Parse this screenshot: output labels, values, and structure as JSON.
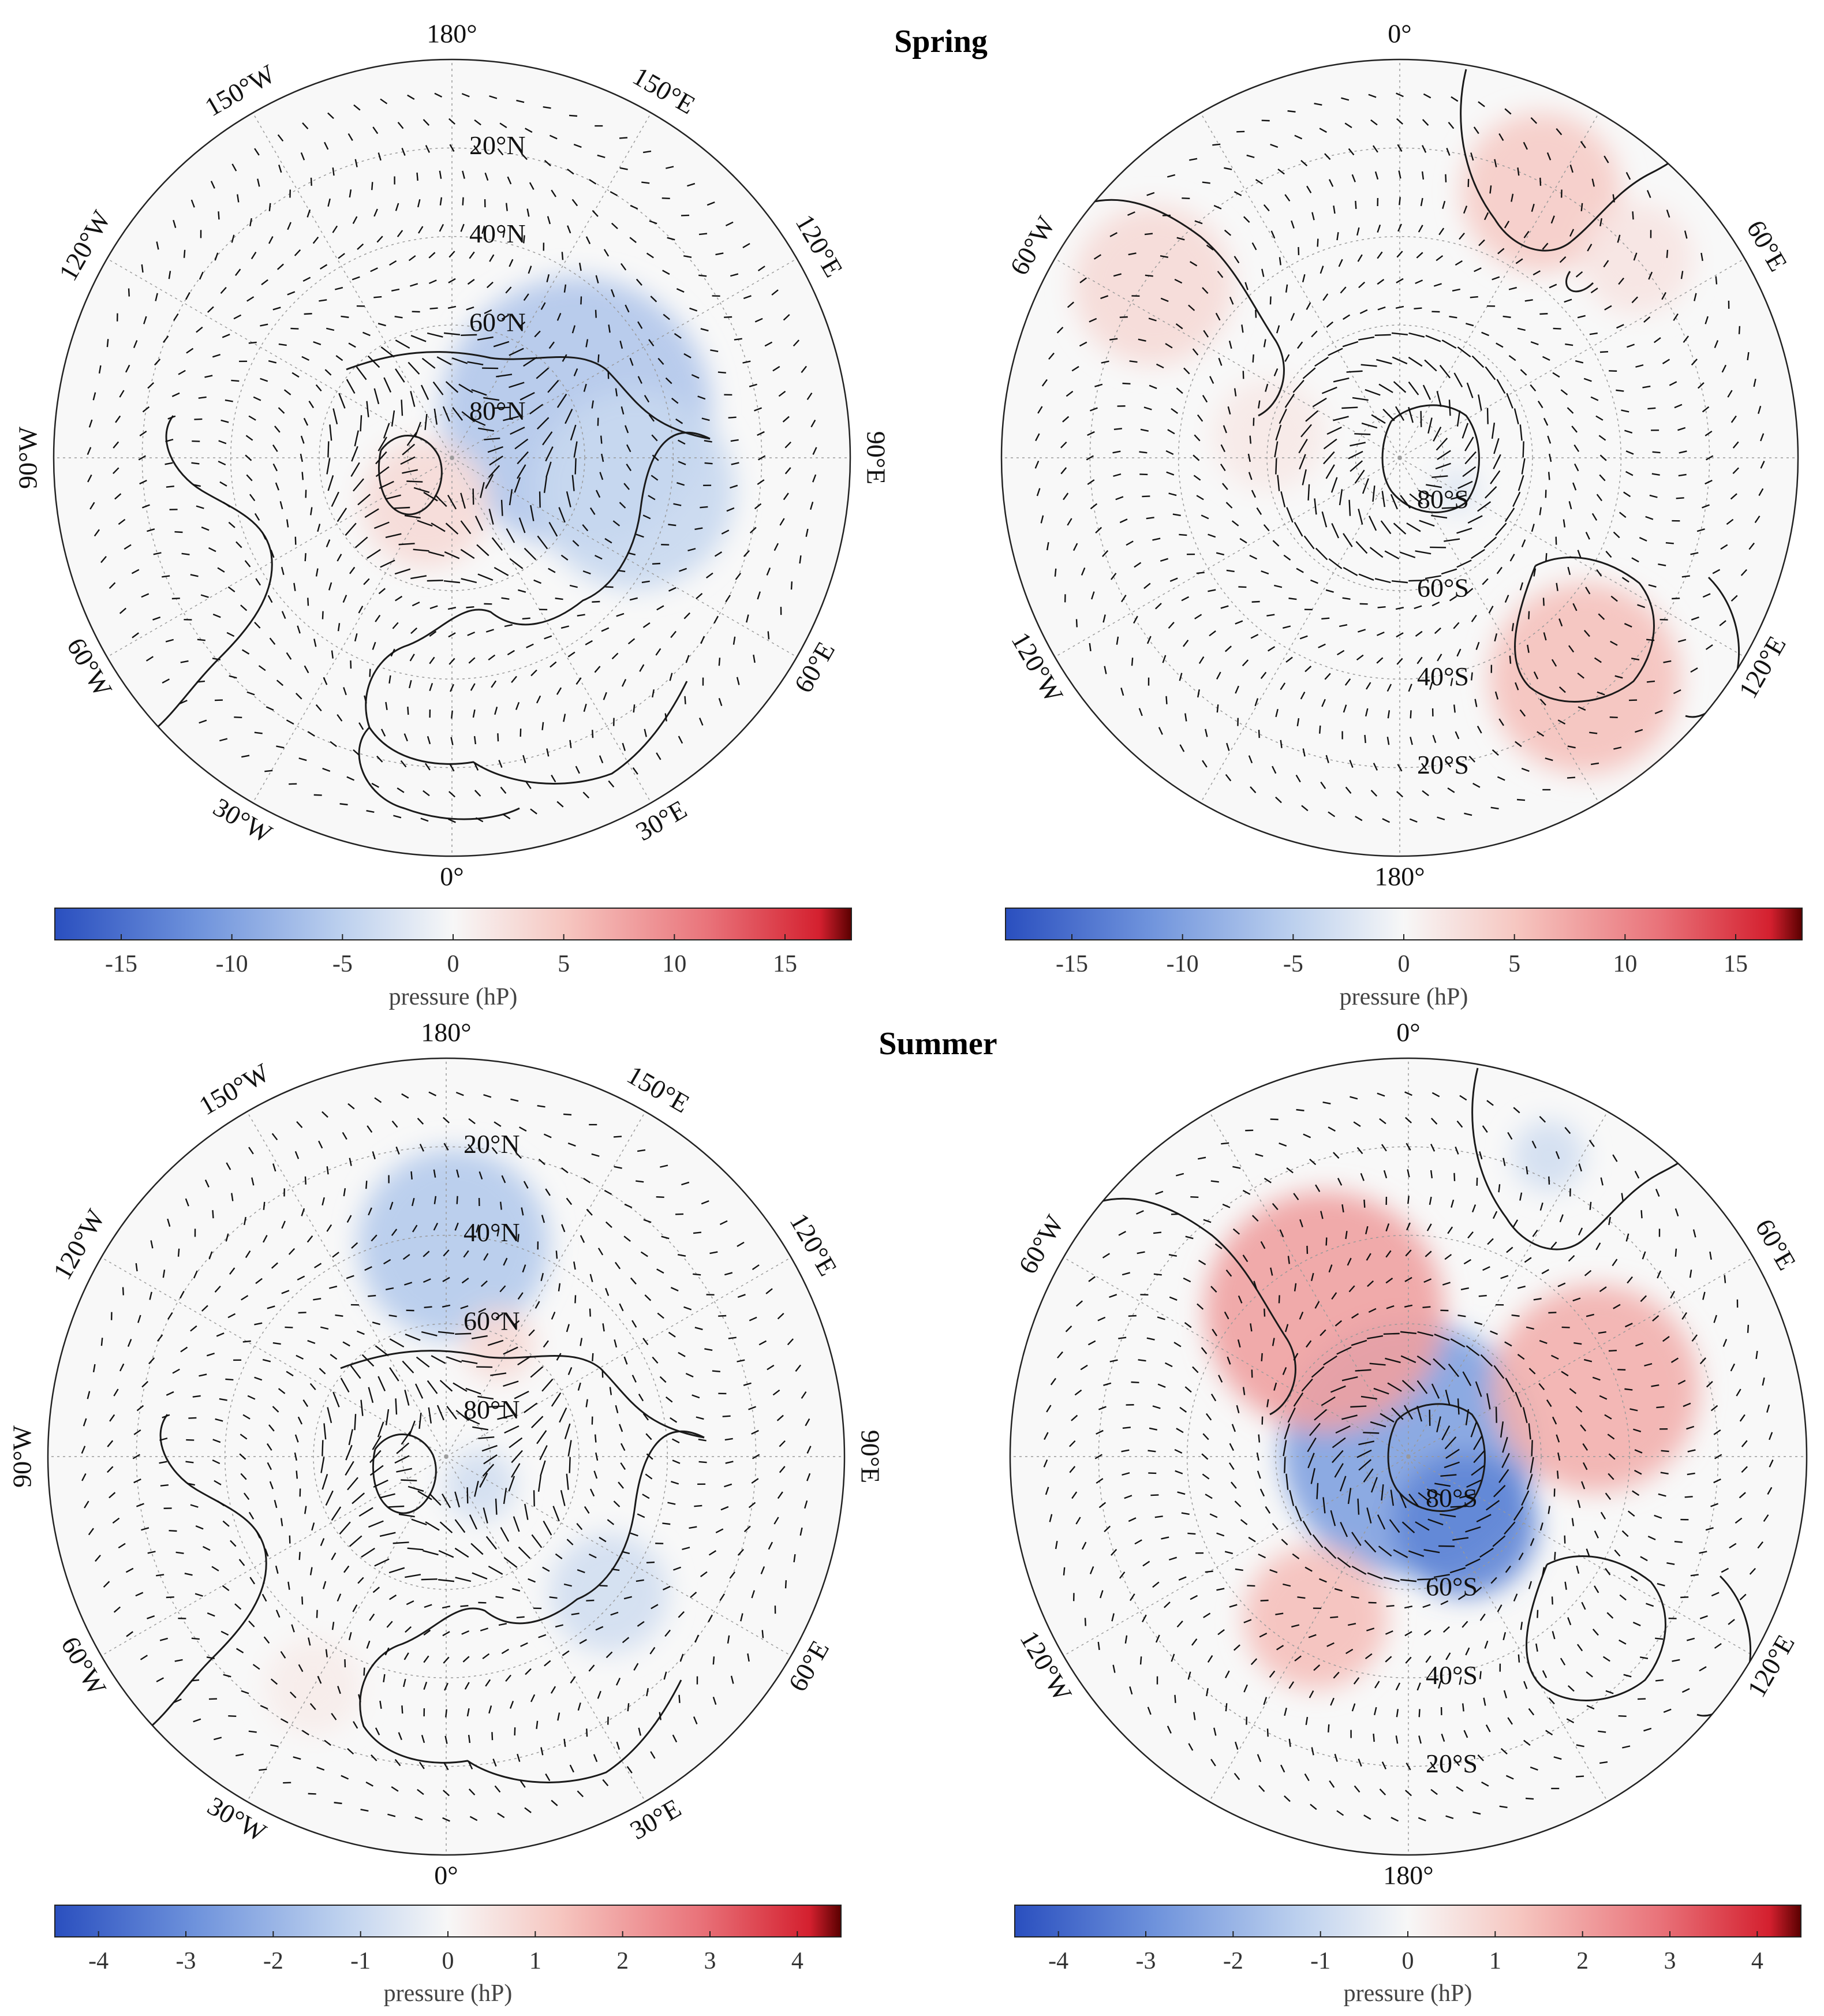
{
  "figure": {
    "row_titles": [
      "Spring",
      "Summer"
    ],
    "panels": [
      {
        "id": "spring-north",
        "season": "Spring",
        "hemisphere": "north",
        "lon_labels": [
          "180°",
          "150°E",
          "120°E",
          "90°E",
          "60°E",
          "30°E",
          "0°",
          "30°W",
          "60°W",
          "90°W",
          "120°W",
          "150°W"
        ],
        "lat_labels": [
          "20°N",
          "40°N",
          "60°N",
          "80°N"
        ],
        "anomalies": [
          {
            "lon": 110,
            "lat": 60,
            "value": -6,
            "spread": 0.34
          },
          {
            "lon": 80,
            "lat": 48,
            "value": -4,
            "spread": 0.25
          },
          {
            "lon": -30,
            "lat": 78,
            "value": 3,
            "spread": 0.16
          }
        ]
      },
      {
        "id": "spring-south",
        "season": "Spring",
        "hemisphere": "south",
        "lon_labels": [
          "0°",
          "60°E",
          "120°E",
          "180°",
          "120°W",
          "60°W"
        ],
        "lat_labels": [
          "20°S",
          "40°S",
          "60°S",
          "80°S"
        ],
        "anomalies": [
          {
            "lon": 28,
            "lat": -22,
            "value": 4.5,
            "spread": 0.2
          },
          {
            "lon": 50,
            "lat": -20,
            "value": 2,
            "spread": 0.14
          },
          {
            "lon": 140,
            "lat": -25,
            "value": 5.5,
            "spread": 0.24
          },
          {
            "lon": -55,
            "lat": -22,
            "value": 3,
            "spread": 0.2
          },
          {
            "lon": -80,
            "lat": -60,
            "value": 1.5,
            "spread": 0.14
          },
          {
            "lon": 120,
            "lat": -75,
            "value": -2,
            "spread": 0.06
          }
        ]
      },
      {
        "id": "summer-north",
        "season": "Summer",
        "hemisphere": "north",
        "lon_labels": [
          "180°",
          "150°E",
          "120°E",
          "90°E",
          "60°E",
          "30°E",
          "0°",
          "30°W",
          "60°W",
          "90°W",
          "120°W",
          "150°W"
        ],
        "lat_labels": [
          "20°N",
          "40°N",
          "60°N",
          "80°N"
        ],
        "anomalies": [
          {
            "lon": 178,
            "lat": 42,
            "value": -1.4,
            "spread": 0.24
          },
          {
            "lon": 155,
            "lat": 62,
            "value": 0.8,
            "spread": 0.09
          },
          {
            "lon": 50,
            "lat": 80,
            "value": -0.8,
            "spread": 0.09
          },
          {
            "lon": 50,
            "lat": 42,
            "value": -0.8,
            "spread": 0.15
          },
          {
            "lon": -30,
            "lat": 30,
            "value": 0.3,
            "spread": 0.12
          }
        ]
      },
      {
        "id": "summer-south",
        "season": "Summer",
        "hemisphere": "south",
        "lon_labels": [
          "0°",
          "60°E",
          "120°E",
          "180°",
          "120°W",
          "60°W"
        ],
        "lat_labels": [
          "20°S",
          "40°S",
          "60°S",
          "80°S"
        ],
        "anomalies": [
          {
            "lon": 0,
            "lat": -88,
            "value": -2.5,
            "spread": 0.32
          },
          {
            "lon": 140,
            "lat": -70,
            "value": -3.2,
            "spread": 0.18
          },
          {
            "lon": -30,
            "lat": -52,
            "value": 2,
            "spread": 0.3
          },
          {
            "lon": 70,
            "lat": -45,
            "value": 1.7,
            "spread": 0.26
          },
          {
            "lon": -150,
            "lat": -48,
            "value": 1.4,
            "spread": 0.18
          },
          {
            "lon": 25,
            "lat": -15,
            "value": -0.8,
            "spread": 0.09
          }
        ]
      }
    ],
    "colorbars": [
      {
        "id": "spring",
        "min": -18,
        "max": 18,
        "ticks": [
          "-15",
          "-10",
          "-5",
          "0",
          "5",
          "10",
          "15"
        ],
        "tick_values": [
          -15,
          -10,
          -5,
          0,
          5,
          10,
          15
        ],
        "label": "pressure (hP)"
      },
      {
        "id": "summer",
        "min": -4.5,
        "max": 4.5,
        "ticks": [
          "-4",
          "-3",
          "-2",
          "-1",
          "0",
          "1",
          "2",
          "3",
          "4"
        ],
        "tick_values": [
          -4,
          -3,
          -2,
          -1,
          0,
          1,
          2,
          3,
          4
        ],
        "label": "pressure (hP)"
      }
    ],
    "colormap": [
      "#2a4fbf",
      "#6f93dc",
      "#bcd0ee",
      "#f7f7f7",
      "#f6c7c1",
      "#e9737a",
      "#d4202f",
      "#5a0000"
    ]
  }
}
